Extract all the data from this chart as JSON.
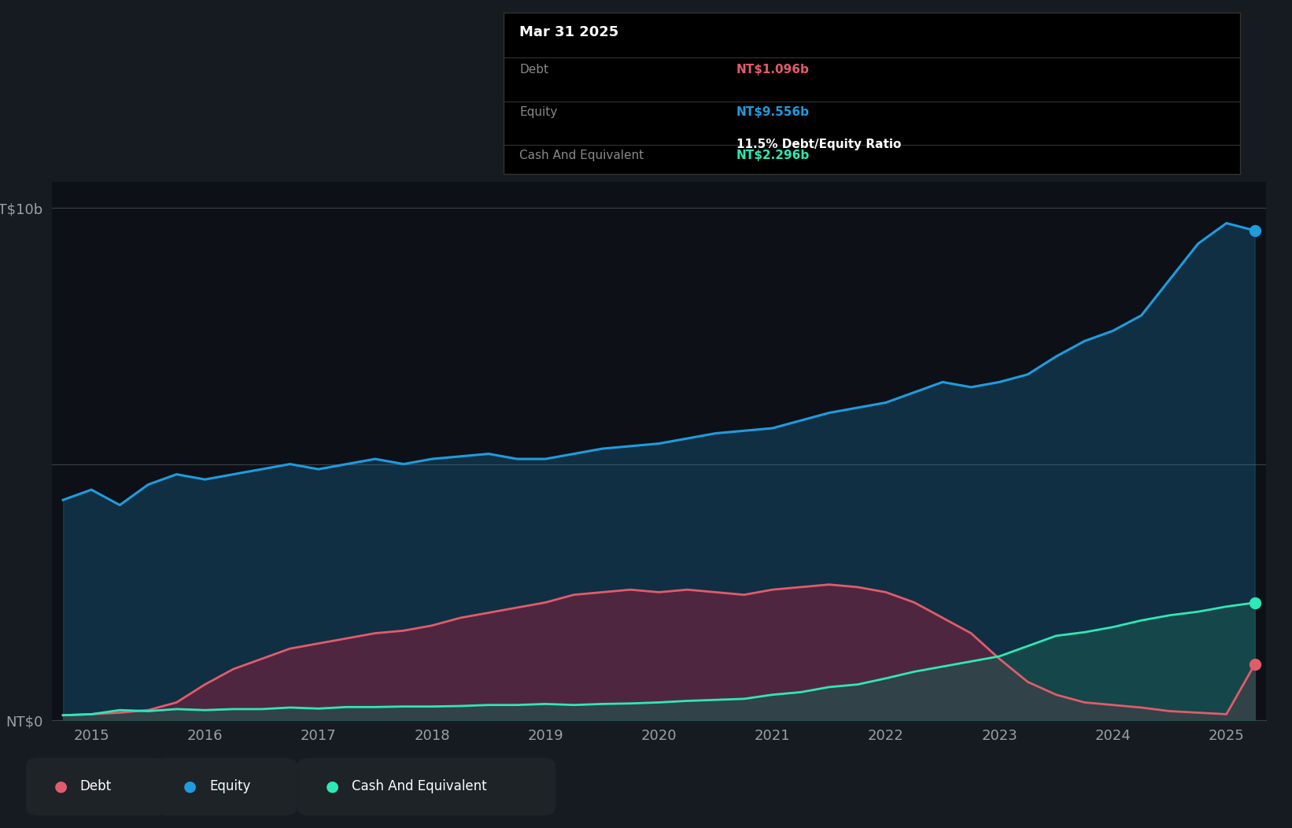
{
  "bg_color": "#161b22",
  "plot_bg_color": "#0d1117",
  "grid_color": "#3a4048",
  "equity_color": "#1f9bde",
  "debt_color": "#e05c6b",
  "cash_color": "#2ee8b5",
  "tooltip_date": "Mar 31 2025",
  "tooltip_debt_label": "Debt",
  "tooltip_debt_value": "NT$1.096b",
  "tooltip_equity_label": "Equity",
  "tooltip_equity_value": "NT$9.556b",
  "tooltip_ratio": "11.5% Debt/Equity Ratio",
  "tooltip_cash_label": "Cash And Equivalent",
  "tooltip_cash_value": "NT$2.296b",
  "legend_items": [
    {
      "label": "Debt",
      "color": "#e05c6b"
    },
    {
      "label": "Equity",
      "color": "#1f9bde"
    },
    {
      "label": "Cash And Equivalent",
      "color": "#2ee8b5"
    }
  ],
  "years": [
    2014.75,
    2015.0,
    2015.25,
    2015.5,
    2015.75,
    2016.0,
    2016.25,
    2016.5,
    2016.75,
    2017.0,
    2017.25,
    2017.5,
    2017.75,
    2018.0,
    2018.25,
    2018.5,
    2018.75,
    2019.0,
    2019.25,
    2019.5,
    2019.75,
    2020.0,
    2020.25,
    2020.5,
    2020.75,
    2021.0,
    2021.25,
    2021.5,
    2021.75,
    2022.0,
    2022.25,
    2022.5,
    2022.75,
    2023.0,
    2023.25,
    2023.5,
    2023.75,
    2024.0,
    2024.25,
    2024.5,
    2024.75,
    2025.0,
    2025.25
  ],
  "equity": [
    4.3,
    4.5,
    4.2,
    4.6,
    4.8,
    4.7,
    4.8,
    4.9,
    5.0,
    4.9,
    5.0,
    5.1,
    5.0,
    5.1,
    5.15,
    5.2,
    5.1,
    5.1,
    5.2,
    5.3,
    5.35,
    5.4,
    5.5,
    5.6,
    5.65,
    5.7,
    5.85,
    6.0,
    6.1,
    6.2,
    6.4,
    6.6,
    6.5,
    6.6,
    6.75,
    7.1,
    7.4,
    7.6,
    7.9,
    8.6,
    9.3,
    9.7,
    9.556
  ],
  "debt": [
    0.1,
    0.12,
    0.15,
    0.2,
    0.35,
    0.7,
    1.0,
    1.2,
    1.4,
    1.5,
    1.6,
    1.7,
    1.75,
    1.85,
    2.0,
    2.1,
    2.2,
    2.3,
    2.45,
    2.5,
    2.55,
    2.5,
    2.55,
    2.5,
    2.45,
    2.55,
    2.6,
    2.65,
    2.6,
    2.5,
    2.3,
    2.0,
    1.7,
    1.2,
    0.75,
    0.5,
    0.35,
    0.3,
    0.25,
    0.18,
    0.15,
    0.12,
    1.096
  ],
  "cash": [
    0.1,
    0.12,
    0.2,
    0.18,
    0.22,
    0.2,
    0.22,
    0.22,
    0.25,
    0.23,
    0.26,
    0.26,
    0.27,
    0.27,
    0.28,
    0.3,
    0.3,
    0.32,
    0.3,
    0.32,
    0.33,
    0.35,
    0.38,
    0.4,
    0.42,
    0.5,
    0.55,
    0.65,
    0.7,
    0.82,
    0.95,
    1.05,
    1.15,
    1.25,
    1.45,
    1.65,
    1.72,
    1.82,
    1.95,
    2.05,
    2.12,
    2.22,
    2.296
  ]
}
